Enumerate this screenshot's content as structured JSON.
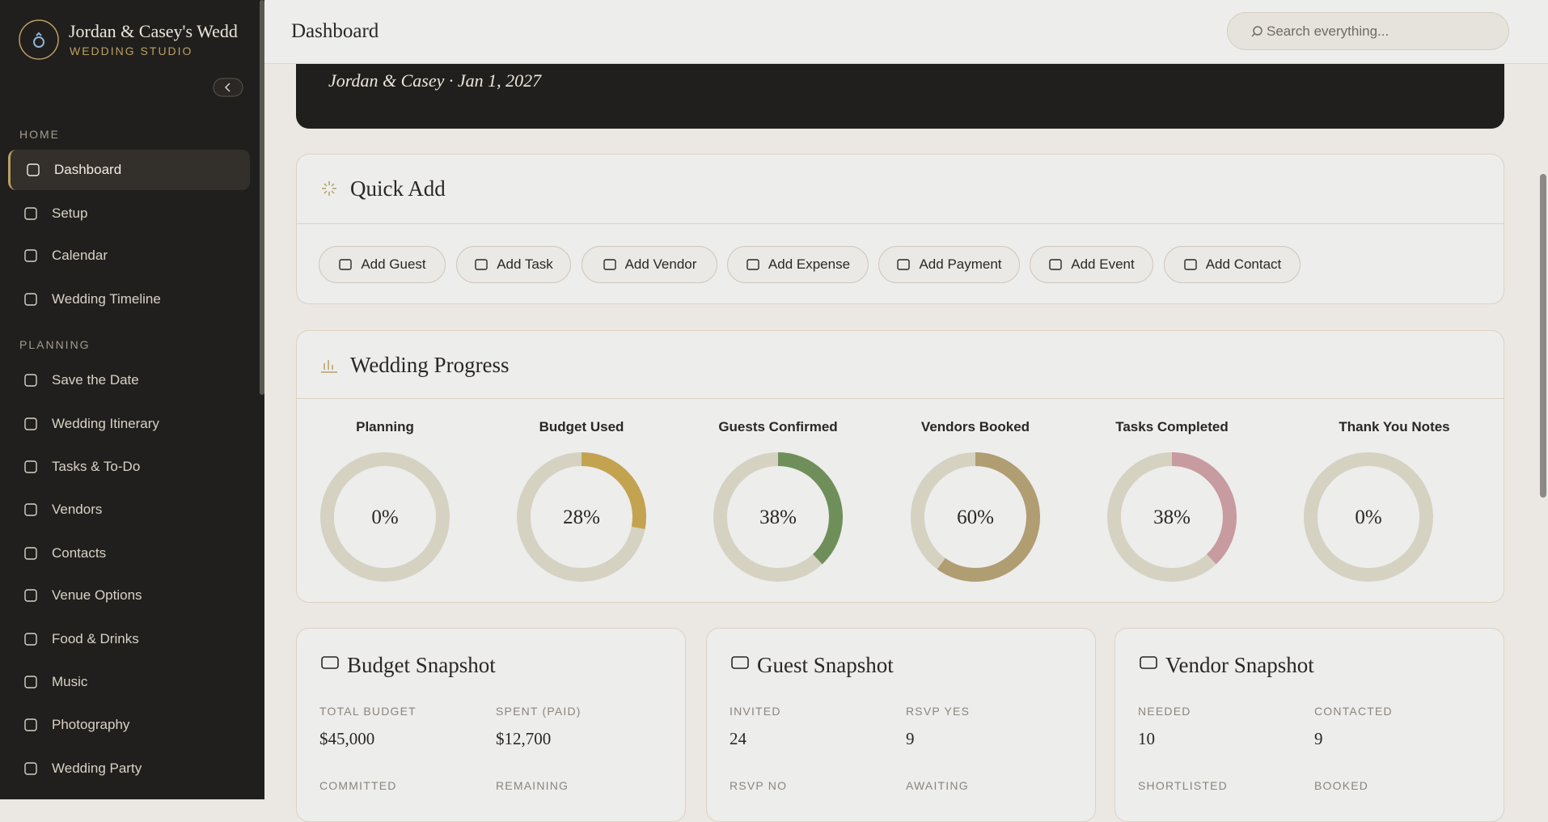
{
  "sidebar": {
    "title": "Jordan & Casey's Wedd",
    "subtitle": "WEDDING STUDIO",
    "sections": [
      {
        "label": "HOME",
        "items": [
          "Dashboard",
          "Setup",
          "Calendar",
          "Wedding Timeline"
        ]
      },
      {
        "label": "PLANNING",
        "items": [
          "Save the Date",
          "Wedding Itinerary",
          "Tasks & To-Do",
          "Vendors",
          "Contacts",
          "Venue Options",
          "Food & Drinks",
          "Music",
          "Photography",
          "Wedding Party"
        ]
      }
    ]
  },
  "header": {
    "title": "Dashboard",
    "search_placeholder": "Search everything..."
  },
  "hero": {
    "subtitle": "Jordan & Casey · Jan 1, 2027"
  },
  "quick_add": {
    "title": "Quick Add",
    "buttons": [
      "Add Guest",
      "Add Task",
      "Add Vendor",
      "Add Expense",
      "Add Payment",
      "Add Event",
      "Add Contact"
    ]
  },
  "progress": {
    "title": "Wedding Progress",
    "items": [
      {
        "label": "Planning",
        "value": 0,
        "value_label": "0%",
        "color": "#b9a063"
      },
      {
        "label": "Budget Used",
        "value": 28,
        "value_label": "28%",
        "color": "#c3a350"
      },
      {
        "label": "Guests Confirmed",
        "value": 38,
        "value_label": "38%",
        "color": "#6f8f5a"
      },
      {
        "label": "Vendors Booked",
        "value": 60,
        "value_label": "60%",
        "color": "#b09e72"
      },
      {
        "label": "Tasks Completed",
        "value": 38,
        "value_label": "38%",
        "color": "#c79ba0"
      },
      {
        "label": "Thank You Notes",
        "value": 0,
        "value_label": "0%",
        "color": "#b9a063"
      }
    ]
  },
  "snapshots": [
    {
      "title": "Budget Snapshot",
      "fields": [
        {
          "label": "TOTAL BUDGET",
          "value": "$45,000"
        },
        {
          "label": "SPENT (PAID)",
          "value": "$12,700"
        },
        {
          "label": "COMMITTED"
        },
        {
          "label": "REMAINING"
        }
      ]
    },
    {
      "title": "Guest Snapshot",
      "fields": [
        {
          "label": "INVITED",
          "value": "24"
        },
        {
          "label": "RSVP YES",
          "value": "9"
        },
        {
          "label": "RSVP NO"
        },
        {
          "label": "AWAITING"
        }
      ]
    },
    {
      "title": "Vendor Snapshot",
      "fields": [
        {
          "label": "NEEDED",
          "value": "10"
        },
        {
          "label": "CONTACTED",
          "value": "9"
        },
        {
          "label": "SHORTLISTED"
        },
        {
          "label": "BOOKED"
        }
      ]
    }
  ]
}
